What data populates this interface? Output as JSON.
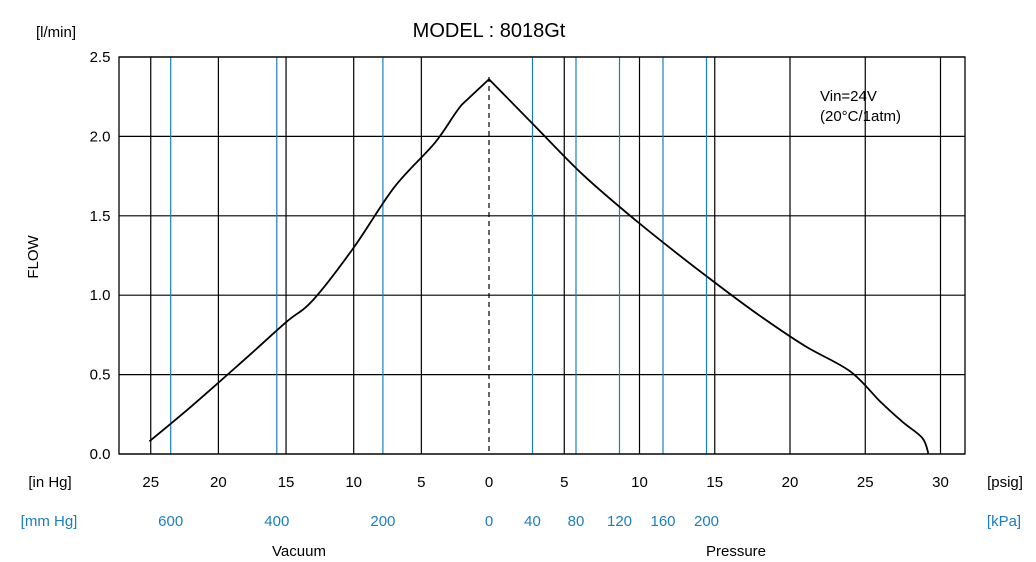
{
  "chart_data": {
    "type": "line",
    "title": "MODEL : 8018Gt",
    "ylabel": "FLOW",
    "yunit": "[l/min]",
    "ylim": [
      0,
      2.5
    ],
    "yticks": [
      "0.0",
      "0.5",
      "1.0",
      "1.5",
      "2.0",
      "2.5"
    ],
    "grid": true,
    "annotation": [
      "Vin=24V",
      "(20°C/1atm)"
    ],
    "center_line": "0",
    "axes": {
      "vacuum_inHg": {
        "unit": "[in Hg]",
        "ticks": [
          "25",
          "20",
          "15",
          "10",
          "5",
          "0"
        ]
      },
      "pressure_psig": {
        "unit": "[psig]",
        "ticks": [
          "5",
          "10",
          "15",
          "20",
          "25",
          "30"
        ]
      },
      "vacuum_mmHg": {
        "unit": "[mm Hg]",
        "ticks": [
          "600",
          "400",
          "200",
          "0"
        ]
      },
      "pressure_kPa": {
        "unit": "[kPa]",
        "ticks": [
          "40",
          "80",
          "120",
          "160",
          "200"
        ]
      },
      "vacuum_label": "Vacuum",
      "pressure_label": "Pressure"
    },
    "series": [
      {
        "vacuum_inHg": [
          25.1,
          22,
          18,
          15,
          13,
          10,
          7,
          4,
          2,
          0
        ],
        "vacuum_flow": [
          0.08,
          0.3,
          0.6,
          0.83,
          0.97,
          1.3,
          1.68,
          1.96,
          2.2,
          2.36
        ],
        "pressure_psig": [
          0,
          3,
          6,
          9,
          12,
          15,
          18,
          21,
          24,
          26,
          27.5,
          28.8,
          29.2
        ],
        "pressure_flow": [
          2.36,
          2.07,
          1.78,
          1.53,
          1.3,
          1.08,
          0.87,
          0.68,
          0.52,
          0.33,
          0.2,
          0.1,
          0.0
        ]
      }
    ]
  }
}
